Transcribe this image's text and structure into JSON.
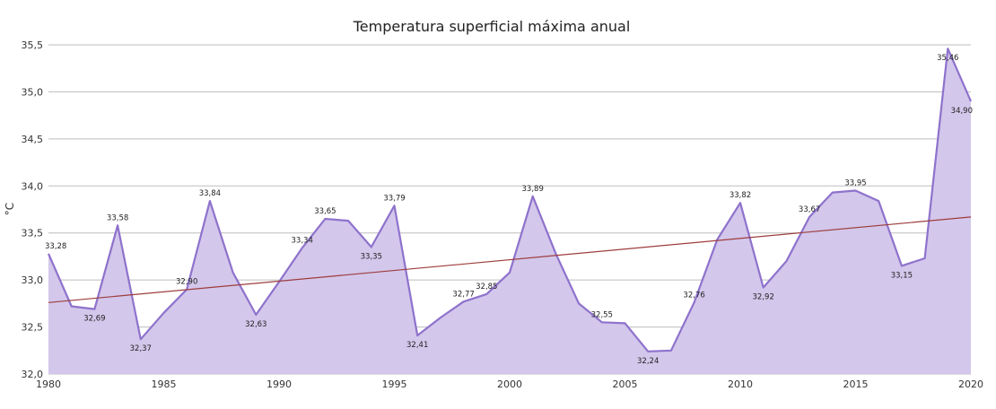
{
  "colors": {
    "line": "#8e72cc",
    "fill": "#d3c7eb",
    "trend": "#9e3c3c",
    "grid": "#bdbdbd"
  },
  "chart_data": {
    "type": "area",
    "title": "Temperatura superficial máxima anual",
    "xlabel": "",
    "ylabel": "°C",
    "xlim": [
      1980,
      2020
    ],
    "ylim": [
      32.0,
      35.5
    ],
    "grid": true,
    "x_ticks": [
      "1980",
      "1985",
      "1990",
      "1995",
      "2000",
      "2005",
      "2010",
      "2015",
      "2020"
    ],
    "y_ticks": [
      "32,0",
      "32,5",
      "33,0",
      "33,5",
      "34,0",
      "34,5",
      "35,0",
      "35,5"
    ],
    "x": [
      1980,
      1981,
      1982,
      1983,
      1984,
      1985,
      1986,
      1987,
      1988,
      1989,
      1990,
      1991,
      1992,
      1993,
      1994,
      1995,
      1996,
      1997,
      1998,
      1999,
      2000,
      2001,
      2002,
      2003,
      2004,
      2005,
      2006,
      2007,
      2008,
      2009,
      2010,
      2011,
      2012,
      2013,
      2014,
      2015,
      2016,
      2017,
      2018,
      2019,
      2020
    ],
    "series": [
      {
        "values": [
          33.28,
          32.72,
          32.69,
          33.58,
          32.37,
          32.65,
          32.9,
          33.84,
          33.08,
          32.63,
          32.98,
          33.34,
          33.65,
          33.63,
          33.35,
          33.79,
          32.41,
          32.6,
          32.77,
          32.85,
          33.08,
          33.89,
          33.28,
          32.75,
          32.55,
          32.54,
          32.24,
          32.25,
          32.76,
          33.43,
          33.82,
          32.92,
          33.2,
          33.67,
          33.93,
          33.95,
          33.84,
          33.15,
          33.23,
          35.46,
          34.9
        ]
      }
    ],
    "data_labels": [
      {
        "x": 1980,
        "y": 33.28,
        "text": "33,28",
        "pos": "above"
      },
      {
        "x": 1982,
        "y": 32.69,
        "text": "32,69",
        "pos": "below"
      },
      {
        "x": 1983,
        "y": 33.58,
        "text": "33,58",
        "pos": "above"
      },
      {
        "x": 1984,
        "y": 32.37,
        "text": "32,37",
        "pos": "below"
      },
      {
        "x": 1986,
        "y": 32.9,
        "text": "32,90",
        "pos": "above"
      },
      {
        "x": 1987,
        "y": 33.84,
        "text": "33,84",
        "pos": "above"
      },
      {
        "x": 1989,
        "y": 32.63,
        "text": "32,63",
        "pos": "below"
      },
      {
        "x": 1991,
        "y": 33.34,
        "text": "33,34",
        "pos": "above"
      },
      {
        "x": 1992,
        "y": 33.65,
        "text": "33,65",
        "pos": "above"
      },
      {
        "x": 1994,
        "y": 33.35,
        "text": "33,35",
        "pos": "below"
      },
      {
        "x": 1995,
        "y": 33.79,
        "text": "33,79",
        "pos": "above"
      },
      {
        "x": 1996,
        "y": 32.41,
        "text": "32,41",
        "pos": "below"
      },
      {
        "x": 1998,
        "y": 32.77,
        "text": "32,77",
        "pos": "above"
      },
      {
        "x": 1999,
        "y": 32.85,
        "text": "32,85",
        "pos": "above"
      },
      {
        "x": 2001,
        "y": 33.89,
        "text": "33,89",
        "pos": "above"
      },
      {
        "x": 2004,
        "y": 32.55,
        "text": "32,55",
        "pos": "above"
      },
      {
        "x": 2006,
        "y": 32.24,
        "text": "32,24",
        "pos": "below"
      },
      {
        "x": 2008,
        "y": 32.76,
        "text": "32,76",
        "pos": "above"
      },
      {
        "x": 2010,
        "y": 33.82,
        "text": "33,82",
        "pos": "above"
      },
      {
        "x": 2011,
        "y": 32.92,
        "text": "32,92",
        "pos": "below"
      },
      {
        "x": 2013,
        "y": 33.67,
        "text": "33,67",
        "pos": "above"
      },
      {
        "x": 2015,
        "y": 33.95,
        "text": "33,95",
        "pos": "above"
      },
      {
        "x": 2017,
        "y": 33.15,
        "text": "33,15",
        "pos": "below"
      },
      {
        "x": 2019,
        "y": 35.46,
        "text": "35,46",
        "pos": "below"
      },
      {
        "x": 2020,
        "y": 34.9,
        "text": "34,90",
        "pos": "below"
      }
    ],
    "trendline": {
      "x": [
        1980,
        2020
      ],
      "y": [
        32.76,
        33.67
      ]
    }
  }
}
